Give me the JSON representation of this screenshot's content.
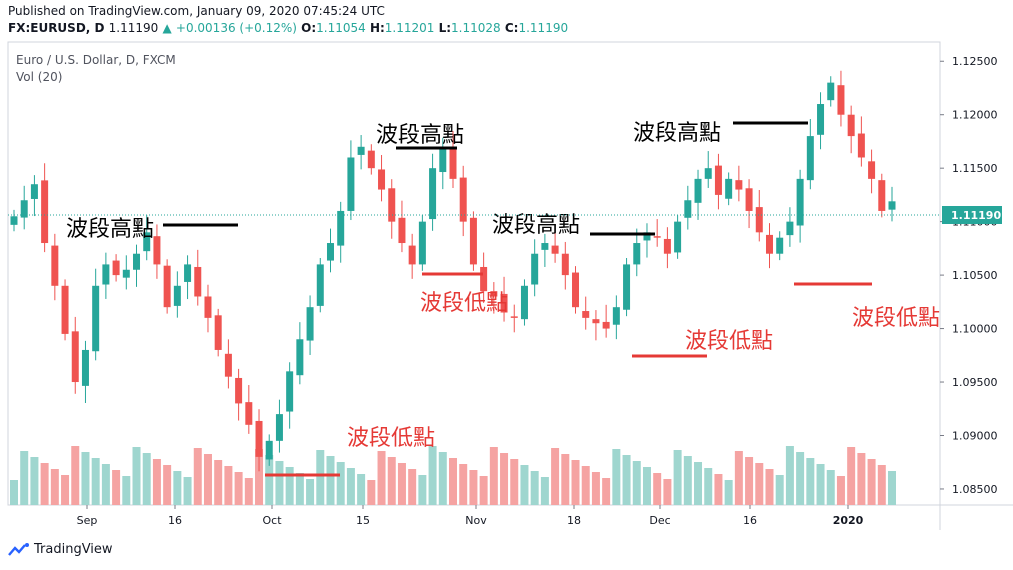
{
  "published": "Published on TradingView.com, January 09, 2020 07:45:24 UTC",
  "symbol_line": {
    "symbol": "FX:EURUSD, D",
    "last": "1.11190",
    "change": "+0.00136 (+0.12%)",
    "o_label": "O:",
    "o": "1.11054",
    "h_label": "H:",
    "h": "1.11201",
    "l_label": "L:",
    "l": "1.11028",
    "c_label": "C:",
    "c": "1.11190"
  },
  "chart_title": "Euro / U.S. Dollar, D, FXCM",
  "volume_label": "Vol (20)",
  "brand": "TradingView",
  "colors": {
    "up": "#26a69a",
    "down": "#ef5350",
    "up_vol": "#9fd6cf",
    "down_vol": "#f5a3a2",
    "annotation_red": "#e53935",
    "annotation_black": "#000000",
    "price_tag": "#26a69a"
  },
  "chart_data": {
    "type": "candlestick",
    "symbol": "FX:EURUSD",
    "timeframe": "D",
    "x_ticks": [
      "Sep",
      "16",
      "Oct",
      "15",
      "Nov",
      "18",
      "Dec",
      "16",
      "2020"
    ],
    "y_ticks": [
      "1.12500",
      "1.12000",
      "1.11500",
      "1.11000",
      "1.10500",
      "1.10000",
      "1.09500",
      "1.09000",
      "1.08500"
    ],
    "ylim": [
      1.0835,
      1.1268
    ],
    "last_price": "1.11190",
    "close_path": [
      1.1105,
      1.112,
      1.1135,
      1.108,
      1.104,
      1.0995,
      1.095,
      1.098,
      1.104,
      1.106,
      1.105,
      1.1055,
      1.107,
      1.109,
      1.106,
      1.102,
      1.104,
      1.106,
      1.103,
      1.101,
      1.098,
      1.0955,
      1.093,
      1.091,
      1.088,
      1.0895,
      1.092,
      1.096,
      1.099,
      1.102,
      1.106,
      1.108,
      1.111,
      1.116,
      1.117,
      1.115,
      1.113,
      1.11,
      1.108,
      1.106,
      1.11,
      1.115,
      1.117,
      1.114,
      1.11,
      1.106,
      1.1035,
      1.103,
      1.1015,
      1.101,
      1.104,
      1.107,
      1.108,
      1.107,
      1.105,
      1.102,
      1.101,
      1.1005,
      1.1,
      1.102,
      1.106,
      1.108,
      1.109,
      1.1085,
      1.107,
      1.11,
      1.112,
      1.114,
      1.115,
      1.1125,
      1.114,
      1.113,
      1.111,
      1.109,
      1.107,
      1.1085,
      1.11,
      1.114,
      1.118,
      1.121,
      1.123,
      1.12,
      1.118,
      1.116,
      1.114,
      1.111,
      1.1119
    ],
    "annotations": [
      {
        "text": "波段高點",
        "kind": "swing-high"
      },
      {
        "text": "波段高點",
        "kind": "swing-high"
      },
      {
        "text": "波段高點",
        "kind": "swing-high"
      },
      {
        "text": "波段高點",
        "kind": "swing-high"
      },
      {
        "text": "波段低點",
        "kind": "swing-low"
      },
      {
        "text": "波段低點",
        "kind": "swing-low"
      },
      {
        "text": "波段低點",
        "kind": "swing-low"
      },
      {
        "text": "波段低點",
        "kind": "swing-low"
      }
    ]
  }
}
